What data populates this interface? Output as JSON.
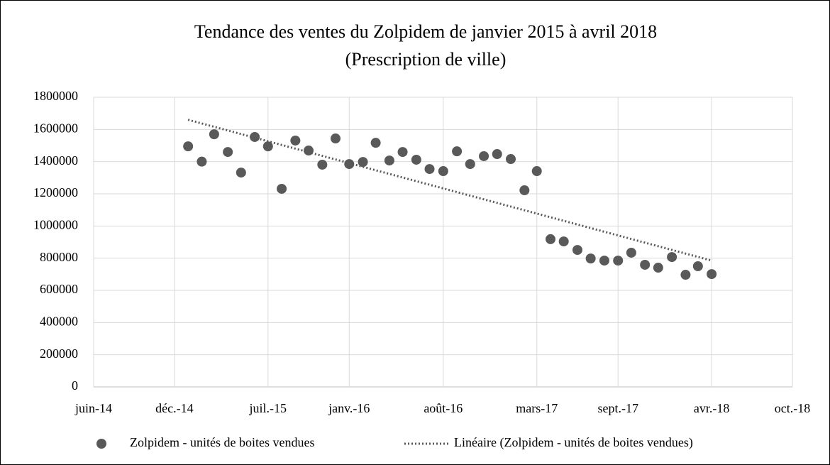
{
  "chart_data": {
    "type": "scatter",
    "title": "Tendance des ventes du Zolpidem de janvier 2015 à avril 2018",
    "subtitle": "(Prescription de ville)",
    "xlim": [
      "2014-06",
      "2018-10"
    ],
    "xticks": [
      {
        "value": "2014-06",
        "label": "juin-14"
      },
      {
        "value": "2014-12",
        "label": "déc.-14"
      },
      {
        "value": "2015-07",
        "label": "juil.-15"
      },
      {
        "value": "2016-01",
        "label": "janv.-16"
      },
      {
        "value": "2016-08",
        "label": "août-16"
      },
      {
        "value": "2017-03",
        "label": "mars-17"
      },
      {
        "value": "2017-09",
        "label": "sept.-17"
      },
      {
        "value": "2018-04",
        "label": "avr.-18"
      },
      {
        "value": "2018-10",
        "label": "oct.-18"
      }
    ],
    "ylim": [
      0,
      1800000
    ],
    "yticks": [
      0,
      200000,
      400000,
      600000,
      800000,
      1000000,
      1200000,
      1400000,
      1600000,
      1800000
    ],
    "grid": true,
    "legend": "bottom",
    "series": [
      {
        "name": "Zolpidem - unités de boites vendues",
        "type": "scatter",
        "color": "#595959",
        "x": [
          "2015-01",
          "2015-02",
          "2015-03",
          "2015-04",
          "2015-05",
          "2015-06",
          "2015-07",
          "2015-08",
          "2015-09",
          "2015-10",
          "2015-11",
          "2015-12",
          "2016-01",
          "2016-02",
          "2016-03",
          "2016-04",
          "2016-05",
          "2016-06",
          "2016-07",
          "2016-08",
          "2016-09",
          "2016-10",
          "2016-11",
          "2016-12",
          "2017-01",
          "2017-02",
          "2017-03",
          "2017-04",
          "2017-05",
          "2017-06",
          "2017-07",
          "2017-08",
          "2017-09",
          "2017-10",
          "2017-11",
          "2017-12",
          "2018-01",
          "2018-02",
          "2018-03",
          "2018-04"
        ],
        "values": [
          1495000,
          1400000,
          1570000,
          1460000,
          1332000,
          1553000,
          1495000,
          1231000,
          1531000,
          1469000,
          1381000,
          1544000,
          1385000,
          1398000,
          1517000,
          1407000,
          1460000,
          1412000,
          1354000,
          1341000,
          1464000,
          1385000,
          1434000,
          1447000,
          1416000,
          1222000,
          1341000,
          918000,
          904000,
          851000,
          798000,
          785000,
          785000,
          834000,
          759000,
          741000,
          807000,
          697000,
          750000,
          701000
        ]
      },
      {
        "name": "Linéaire (Zolpidem - unités de boites vendues)",
        "type": "line",
        "color": "#595959",
        "x": [
          "2015-01",
          "2018-04"
        ],
        "values": [
          1660000,
          785000
        ]
      }
    ]
  }
}
